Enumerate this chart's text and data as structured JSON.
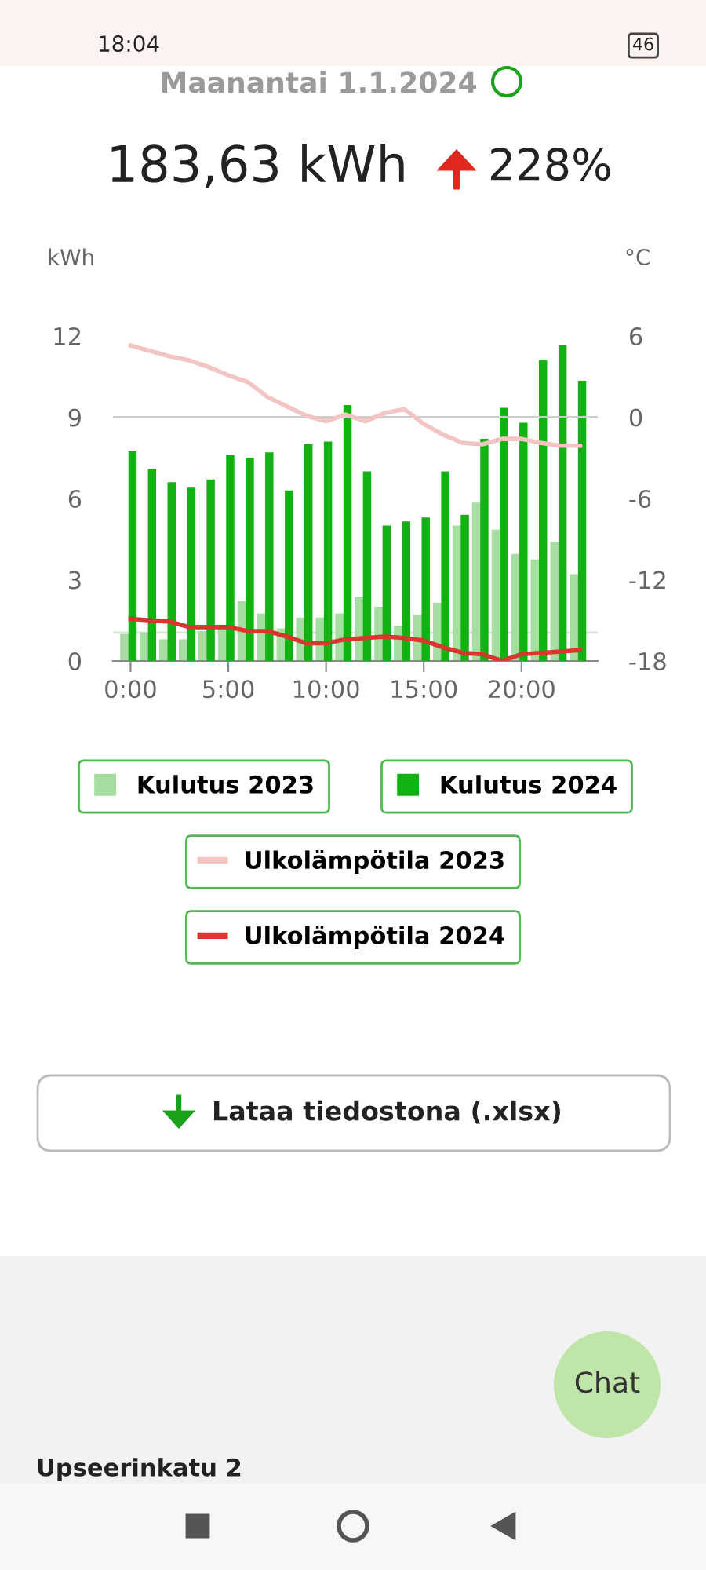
{
  "chart_data": {
    "type": "bar",
    "title": "Maanantai 1.1.2024",
    "subtitle": "183,63 kWh",
    "ylabel": "kWh",
    "y2label": "°C",
    "x": [
      0,
      1,
      2,
      3,
      4,
      5,
      6,
      7,
      8,
      9,
      10,
      11,
      12,
      13,
      14,
      15,
      16,
      17,
      18,
      19,
      20,
      21,
      22,
      23
    ],
    "xlim": [
      -0.9,
      23.9
    ],
    "xticks": [
      {
        "value": 0,
        "label": "0:00"
      },
      {
        "value": 5,
        "label": "5:00"
      },
      {
        "value": 10,
        "label": "10:00"
      },
      {
        "value": 15,
        "label": "15:00"
      },
      {
        "value": 20,
        "label": "20:00"
      }
    ],
    "ylim": [
      0,
      12
    ],
    "yticks": [
      0,
      3,
      6,
      9,
      12
    ],
    "y2lim": [
      -18,
      6
    ],
    "y2ticks": [
      -18,
      -12,
      -6,
      0,
      6
    ],
    "series": [
      {
        "name": "Kulutus 2023",
        "color": "#a5dea0",
        "values": [
          1.0,
          1.05,
          0.8,
          0.8,
          1.1,
          1.2,
          2.2,
          1.75,
          1.2,
          1.6,
          1.6,
          1.75,
          2.35,
          2.0,
          1.3,
          1.7,
          2.15,
          5.0,
          5.85,
          4.85,
          3.95,
          3.75,
          4.4,
          3.2
        ]
      },
      {
        "name": "Kulutus 2024",
        "color": "#13b213",
        "values": [
          7.75,
          7.1,
          6.6,
          6.4,
          6.7,
          7.6,
          7.5,
          7.7,
          6.3,
          8.0,
          8.1,
          9.45,
          7.0,
          5.0,
          5.15,
          5.3,
          7.0,
          5.4,
          8.2,
          9.35,
          8.8,
          11.1,
          11.65,
          10.35
        ]
      },
      {
        "name": "Ulkolämpötila 2023",
        "type": "line",
        "axis": "y2",
        "color": "#f2c4c4",
        "values": [
          5.3,
          4.9,
          4.5,
          4.2,
          3.7,
          3.1,
          2.6,
          1.5,
          0.8,
          0.1,
          -0.3,
          0.2,
          -0.3,
          0.3,
          0.6,
          -0.5,
          -1.3,
          -1.9,
          -2.0,
          -1.6,
          -1.6,
          -1.9,
          -2.1,
          -2.1
        ]
      },
      {
        "name": "Ulkolämpötila 2024",
        "type": "line",
        "axis": "y2",
        "color": "#d7372c",
        "values": [
          -14.9,
          -15.0,
          -15.1,
          -15.5,
          -15.5,
          -15.5,
          -15.8,
          -15.8,
          -16.2,
          -16.7,
          -16.7,
          -16.4,
          -16.3,
          -16.2,
          -16.3,
          -16.5,
          -17.0,
          -17.4,
          -17.5,
          -18.0,
          -17.5,
          -17.4,
          -17.3,
          -17.2
        ]
      }
    ],
    "ref_lines": [
      {
        "axis": "y2",
        "value": 0,
        "color": "#cccccc"
      },
      {
        "axis": "y",
        "value": 1.05,
        "color": "#d3ecd0"
      }
    ],
    "legend": "bottom",
    "annotations": [
      "228%",
      "Lataa tiedostona (.xlsx)",
      "Chat",
      "Upseerinkatu 2",
      "18:04",
      "46"
    ]
  }
}
